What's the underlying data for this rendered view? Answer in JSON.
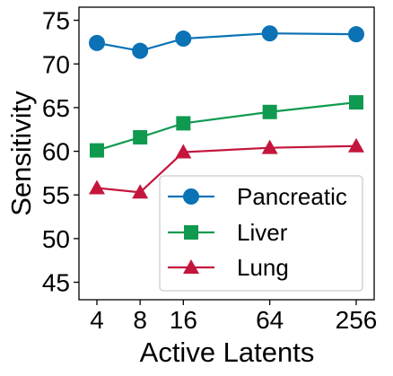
{
  "chart_data": {
    "type": "line",
    "title": "",
    "xlabel": "Active Latents",
    "ylabel": "Sensitivity",
    "x": [
      4,
      8,
      16,
      64,
      256
    ],
    "xscale": "log2",
    "xticks": [
      "4",
      "8",
      "16",
      "64",
      "256"
    ],
    "ylim": [
      43,
      76.5
    ],
    "yticks": [
      45,
      50,
      55,
      60,
      65,
      70,
      75
    ],
    "grid": false,
    "legend_position": "bottom-right",
    "series": [
      {
        "name": "Pancreatic",
        "marker": "circle",
        "color": "#0a72b5",
        "values": [
          72.4,
          71.5,
          72.9,
          73.5,
          73.4
        ]
      },
      {
        "name": "Liver",
        "marker": "square",
        "color": "#0f9a4f",
        "values": [
          60.1,
          61.6,
          63.2,
          64.5,
          65.6
        ]
      },
      {
        "name": "Lung",
        "marker": "triangle",
        "color": "#c4163d",
        "values": [
          55.8,
          55.3,
          59.9,
          60.4,
          60.6
        ]
      }
    ]
  }
}
